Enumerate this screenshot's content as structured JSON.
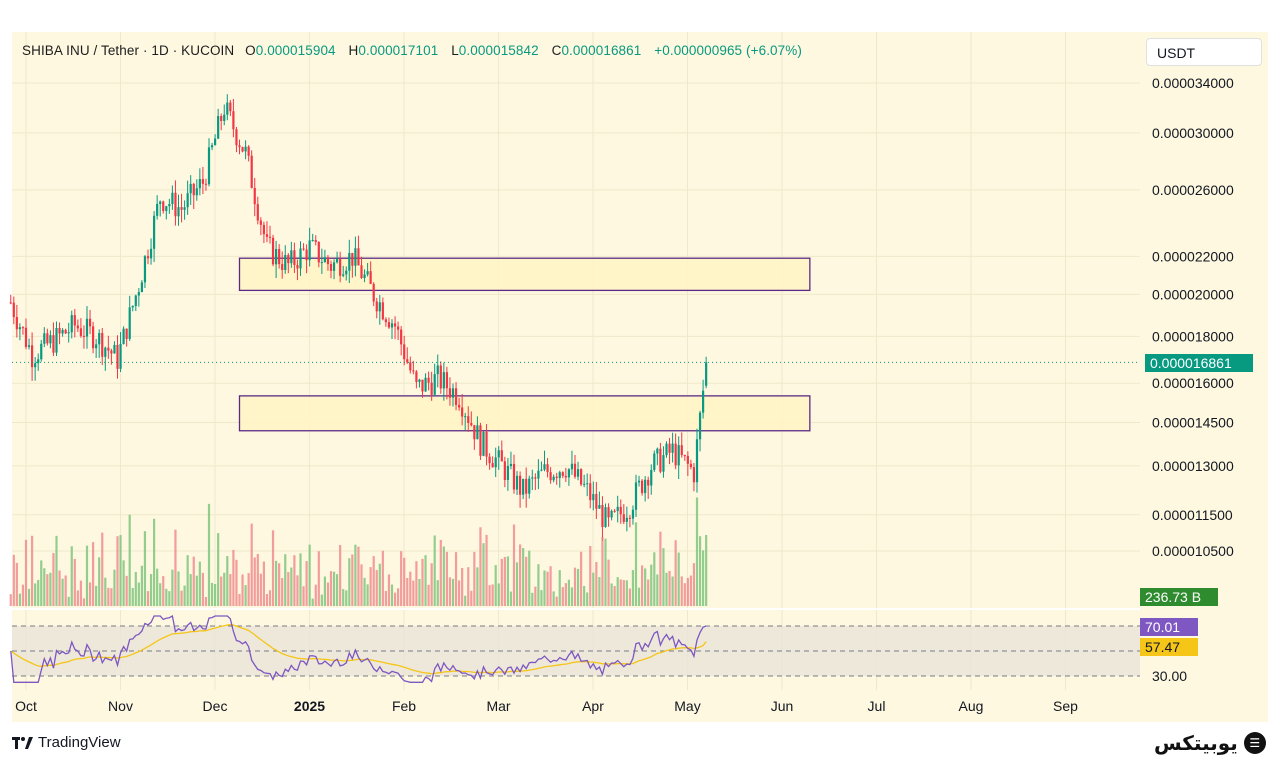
{
  "header": {
    "symbol": "SHIBA INU / Tether · 1D · KUCOIN",
    "open_label": "O",
    "open": "0.000015904",
    "high_label": "H",
    "high": "0.000017101",
    "low_label": "L",
    "low": "0.000015842",
    "close_label": "C",
    "close": "0.000016861",
    "change": "+0.000000965 (+6.07%)",
    "currency": "USDT"
  },
  "badges": {
    "price": "0.000016861",
    "volume": "236.73 B",
    "rsi": "70.01",
    "rsi_ma": "57.47"
  },
  "footer": {
    "brand": "TradingView",
    "logo_text": "یوبیتکس"
  },
  "colors": {
    "up": "#089981",
    "down": "#f23645",
    "zone_border": "#5b2a86",
    "zone_fill": "#fff4c7",
    "rsi_line": "#7e57c2",
    "rsi_ma": "#f5c518",
    "background": "#fdf8df"
  },
  "chart_data": {
    "type": "candlestick",
    "price_axis": {
      "scale": "log",
      "ticks": [
        "0.000034000",
        "0.000030000",
        "0.000026000",
        "0.000022000",
        "0.000020000",
        "0.000018000",
        "0.000016000",
        "0.000014500",
        "0.000013000",
        "0.000011500",
        "0.000010500"
      ],
      "last_price": 1.6861e-05
    },
    "time_axis": [
      "Oct",
      "Nov",
      "Dec",
      "2025",
      "Feb",
      "Mar",
      "Apr",
      "May",
      "Jun",
      "Jul",
      "Aug",
      "Sep"
    ],
    "zones": [
      {
        "from_date": "2024-12-10",
        "to_date": "2025-06-15",
        "low": 2.02e-05,
        "high": 2.19e-05
      },
      {
        "from_date": "2024-12-10",
        "to_date": "2025-06-15",
        "low": 1.42e-05,
        "high": 1.55e-05
      }
    ],
    "closes_weekly": [
      {
        "date": "2024-09-26",
        "close": 1.96e-05
      },
      {
        "date": "2024-10-03",
        "close": 1.72e-05
      },
      {
        "date": "2024-10-10",
        "close": 1.78e-05
      },
      {
        "date": "2024-10-17",
        "close": 1.85e-05
      },
      {
        "date": "2024-10-24",
        "close": 1.8e-05
      },
      {
        "date": "2024-10-31",
        "close": 1.7e-05
      },
      {
        "date": "2024-11-07",
        "close": 2.05e-05
      },
      {
        "date": "2024-11-14",
        "close": 2.55e-05
      },
      {
        "date": "2024-11-21",
        "close": 2.48e-05
      },
      {
        "date": "2024-11-28",
        "close": 2.65e-05
      },
      {
        "date": "2024-12-05",
        "close": 3.2e-05
      },
      {
        "date": "2024-12-12",
        "close": 2.85e-05
      },
      {
        "date": "2024-12-19",
        "close": 2.25e-05
      },
      {
        "date": "2024-12-26",
        "close": 2.15e-05
      },
      {
        "date": "2025-01-02",
        "close": 2.25e-05
      },
      {
        "date": "2025-01-09",
        "close": 2.15e-05
      },
      {
        "date": "2025-01-16",
        "close": 2.2e-05
      },
      {
        "date": "2025-01-23",
        "close": 2e-05
      },
      {
        "date": "2025-01-30",
        "close": 1.85e-05
      },
      {
        "date": "2025-02-06",
        "close": 1.58e-05
      },
      {
        "date": "2025-02-13",
        "close": 1.62e-05
      },
      {
        "date": "2025-02-20",
        "close": 1.55e-05
      },
      {
        "date": "2025-02-27",
        "close": 1.38e-05
      },
      {
        "date": "2025-03-06",
        "close": 1.3e-05
      },
      {
        "date": "2025-03-13",
        "close": 1.22e-05
      },
      {
        "date": "2025-03-20",
        "close": 1.28e-05
      },
      {
        "date": "2025-03-27",
        "close": 1.3e-05
      },
      {
        "date": "2025-04-03",
        "close": 1.22e-05
      },
      {
        "date": "2025-04-10",
        "close": 1.12e-05
      },
      {
        "date": "2025-04-17",
        "close": 1.18e-05
      },
      {
        "date": "2025-04-24",
        "close": 1.3e-05
      },
      {
        "date": "2025-05-01",
        "close": 1.35e-05
      },
      {
        "date": "2025-05-08",
        "close": 1.28e-05
      },
      {
        "date": "2025-05-12",
        "close": 1.68e-05
      }
    ],
    "volume_last": "236.73 B",
    "rsi": {
      "value": 70.01,
      "ma": 57.47,
      "levels": [
        70,
        50,
        30
      ],
      "level_labels": [
        "70.00",
        "30.00"
      ]
    }
  }
}
